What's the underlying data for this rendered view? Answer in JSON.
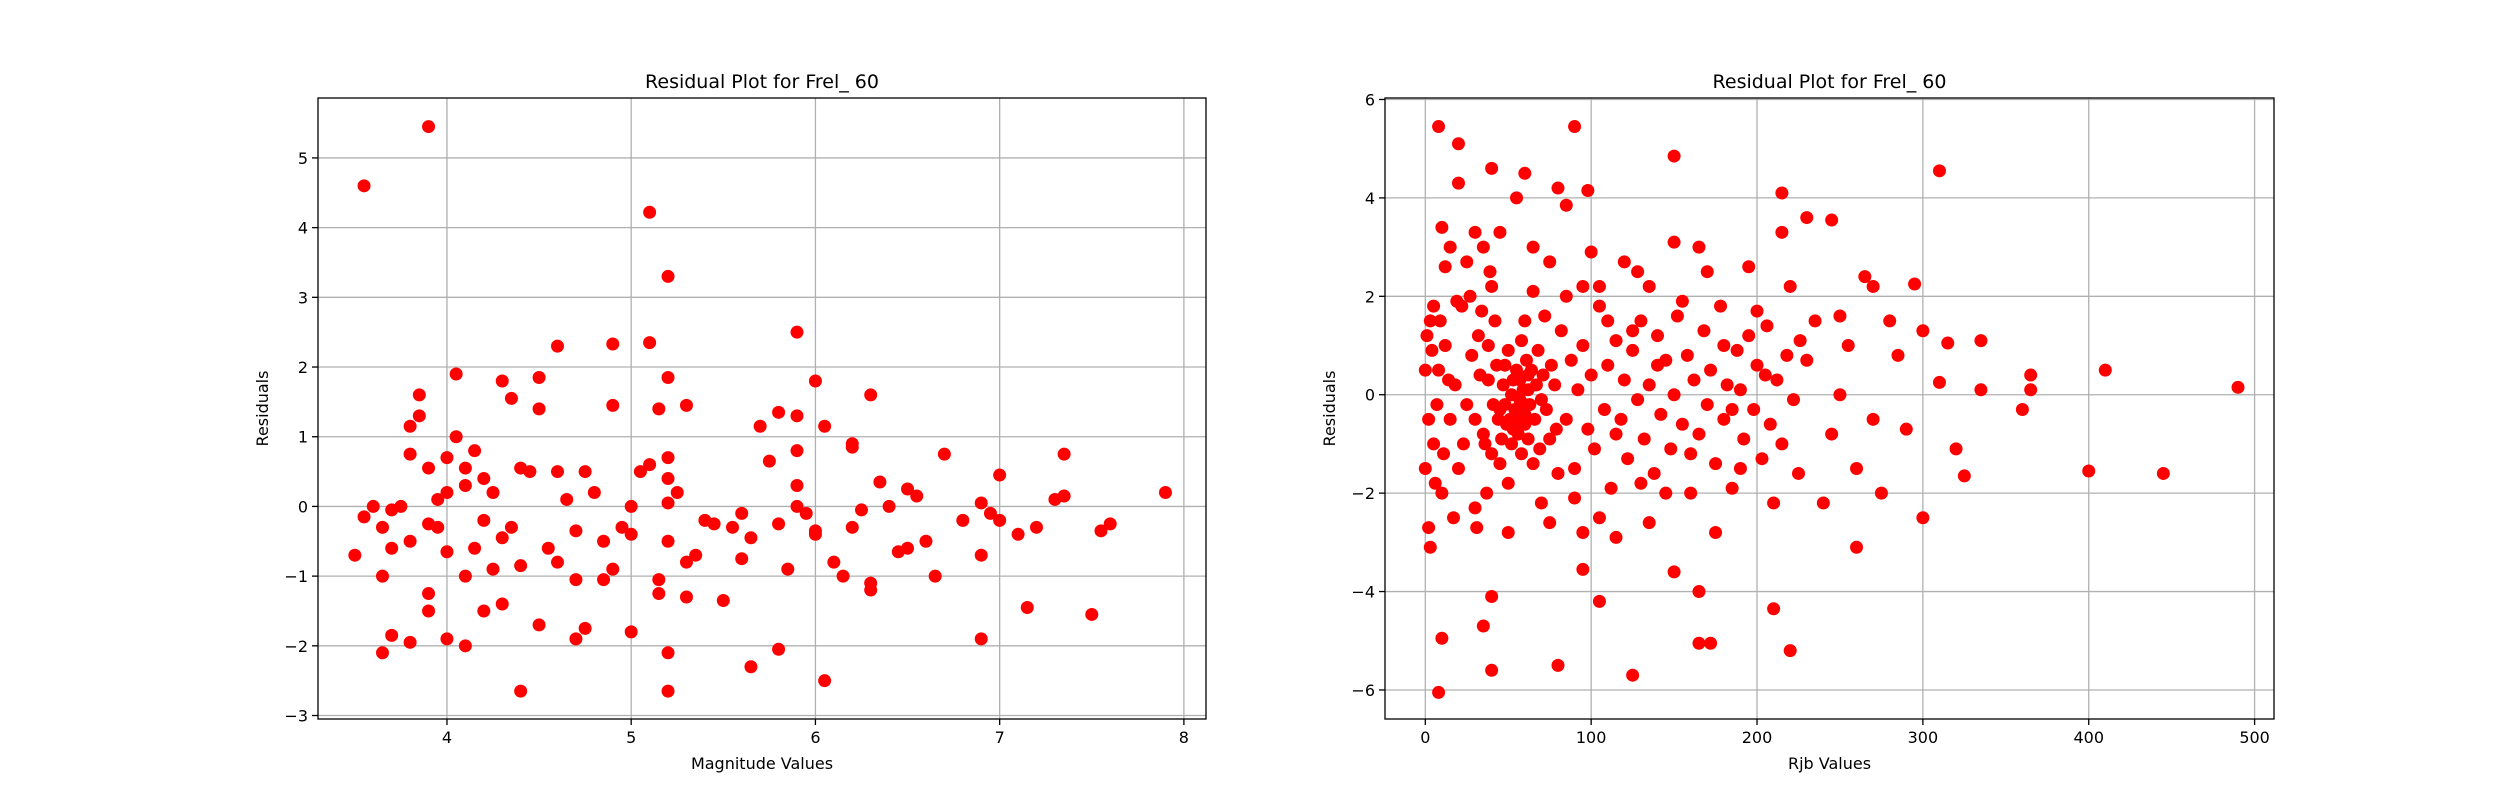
{
  "chart_data": [
    {
      "type": "scatter",
      "title": "Residual Plot for Frel_ 60",
      "xlabel": "Magnitude Values",
      "ylabel": "Residuals",
      "color": "#ff0000",
      "grid": true,
      "xlim": [
        3.3,
        8.12
      ],
      "ylim": [
        -3.05,
        5.86
      ],
      "xticks": [
        4,
        5,
        6,
        7,
        8
      ],
      "yticks": [
        {
          "value": -3,
          "label": "−3"
        },
        {
          "value": -2,
          "label": "−2"
        },
        {
          "value": -1,
          "label": "−1"
        },
        0,
        1,
        2,
        3,
        4,
        5
      ],
      "x": [
        3.55,
        3.9,
        5.1,
        5.2,
        5.9,
        4.6,
        4.9,
        5.1,
        6.0,
        6.3,
        3.5,
        3.55,
        3.65,
        3.65,
        3.7,
        3.8,
        3.9,
        3.9,
        4.0,
        4.1,
        4.4,
        4.7,
        4.75,
        5.0,
        5.2,
        5.2,
        5.65,
        5.8,
        6.05,
        6.9,
        7.15,
        7.5,
        7.9,
        7.6,
        7.55,
        7.35,
        7.3,
        7.35,
        7.2,
        7.1,
        7.0,
        7.0,
        6.9,
        6.9,
        6.95,
        6.8,
        6.7,
        6.65,
        6.6,
        6.55,
        6.5,
        6.5,
        6.45,
        6.4,
        6.35,
        6.3,
        6.3,
        6.25,
        6.2,
        6.2,
        6.2,
        6.15,
        6.1,
        6.05,
        6.0,
        5.95,
        6.0,
        5.9,
        5.9,
        5.9,
        5.85,
        5.9,
        5.8,
        5.8,
        5.75,
        5.7,
        5.65,
        5.6,
        5.6,
        5.5,
        5.4,
        5.35,
        5.3,
        5.3,
        5.3,
        5.25,
        5.2,
        5.2,
        5.2,
        5.2,
        5.2,
        5.15,
        5.15,
        5.15,
        5.1,
        5.05,
        5.0,
        5.0,
        4.95,
        4.9,
        4.9,
        4.85,
        4.85,
        4.8,
        4.75,
        4.7,
        4.65,
        4.6,
        4.55,
        4.5,
        4.5,
        4.5,
        4.45,
        4.4,
        4.4,
        4.35,
        4.3,
        4.3,
        4.25,
        4.2,
        4.2,
        4.15,
        4.15,
        4.1,
        4.1,
        4.05,
        4.05,
        4.0,
        4.0,
        3.95,
        3.95,
        3.9,
        3.85,
        3.85,
        3.8,
        3.8,
        3.8,
        3.75,
        3.7,
        3.7,
        3.65,
        3.6,
        4.2,
        4.25,
        4.3,
        4.1,
        4.0,
        4.35,
        3.9,
        4.6,
        4.7,
        5.55,
        5.45
      ],
      "values": [
        4.6,
        5.45,
        4.22,
        3.3,
        2.5,
        2.3,
        2.33,
        2.35,
        1.8,
        1.6,
        -0.7,
        -0.15,
        -2.1,
        -1.0,
        -1.85,
        -1.95,
        -1.5,
        -1.25,
        -1.9,
        -2.0,
        -2.65,
        -1.9,
        -1.75,
        -1.8,
        -2.65,
        -2.1,
        -2.3,
        -2.05,
        -2.5,
        -1.9,
        -1.45,
        -1.55,
        0.2,
        -0.25,
        -0.35,
        0.75,
        0.1,
        0.15,
        -0.3,
        -0.4,
        0.45,
        -0.2,
        -0.7,
        0.05,
        -0.1,
        -0.2,
        0.75,
        -1.0,
        -0.5,
        0.15,
        -0.6,
        0.25,
        -0.65,
        0.0,
        0.35,
        -1.2,
        -1.1,
        -0.05,
        0.9,
        -0.3,
        0.85,
        -1.0,
        -0.8,
        1.15,
        -0.35,
        -0.1,
        -0.4,
        1.3,
        0.8,
        0.3,
        -0.9,
        0.0,
        -0.25,
        1.35,
        0.65,
        1.15,
        -0.45,
        -0.75,
        -0.1,
        -1.35,
        -0.2,
        -0.7,
        1.45,
        -1.3,
        -0.8,
        0.2,
        0.7,
        -0.5,
        0.05,
        0.4,
        1.85,
        1.4,
        -1.05,
        -1.25,
        0.6,
        0.5,
        0.0,
        -0.4,
        -0.3,
        1.45,
        -0.9,
        -1.05,
        -0.5,
        0.2,
        0.5,
        -0.35,
        0.1,
        0.5,
        -0.6,
        1.85,
        1.4,
        -1.7,
        0.5,
        -0.85,
        0.55,
        1.55,
        1.8,
        -1.4,
        0.2,
        -1.5,
        0.4,
        -0.6,
        0.8,
        -1.0,
        0.3,
        1.0,
        1.9,
        -0.65,
        0.7,
        -0.3,
        0.1,
        0.55,
        1.3,
        1.6,
        1.15,
        0.75,
        -0.5,
        0.0,
        -0.05,
        -0.6,
        -0.3,
        0.0,
        -0.2,
        -0.9,
        -0.45,
        0.55,
        0.2,
        -0.3,
        -0.25,
        -0.8,
        -1.05,
        -0.3,
        -0.25
      ]
    },
    {
      "type": "scatter",
      "title": "Residual Plot for Frel_ 60",
      "xlabel": "Rjb Values",
      "ylabel": "Residuals",
      "color": "#ff0000",
      "grid": true,
      "xlim": [
        -24.3,
        511.7
      ],
      "ylim": [
        -6.59,
        6.03
      ],
      "xticks": [
        0,
        100,
        200,
        300,
        400,
        500
      ],
      "yticks": [
        {
          "value": -6,
          "label": "−6"
        },
        {
          "value": -4,
          "label": "−4"
        },
        {
          "value": -2,
          "label": "−2"
        },
        0,
        2,
        4,
        6
      ],
      "x": [
        8,
        20,
        40,
        60,
        90,
        150,
        310,
        215,
        230,
        245,
        8,
        125,
        40,
        80,
        220,
        165,
        172,
        210,
        105,
        40,
        35,
        10,
        165,
        150,
        95,
        260,
        490,
        445,
        410,
        400,
        365,
        365,
        360,
        335,
        335,
        325,
        320,
        315,
        310,
        300,
        300,
        295,
        290,
        280,
        270,
        265,
        260,
        255,
        250,
        245,
        240,
        235,
        230,
        225,
        220,
        215,
        210,
        205,
        200,
        195,
        190,
        185,
        180,
        175,
        170,
        165,
        160,
        155,
        150,
        145,
        140,
        135,
        130,
        125,
        120,
        115,
        110,
        105,
        100,
        98,
        95,
        90,
        85,
        80,
        75,
        70,
        65,
        60,
        55,
        50,
        45,
        40,
        35,
        30,
        25,
        20,
        15,
        12,
        10,
        5,
        3,
        2,
        3,
        5,
        8,
        10,
        12,
        15,
        18,
        20,
        22,
        25,
        28,
        30,
        32,
        35,
        38,
        40,
        42,
        45,
        48,
        50,
        52,
        55,
        58,
        60,
        62,
        65,
        68,
        70,
        72,
        75,
        78,
        80,
        82,
        85,
        88,
        90,
        92,
        95,
        98,
        100,
        102,
        105,
        108,
        110,
        112,
        115,
        118,
        120,
        122,
        125,
        128,
        130,
        132,
        135,
        138,
        140,
        142,
        145,
        148,
        150,
        152,
        155,
        158,
        160,
        162,
        165,
        168,
        170,
        172,
        175,
        178,
        180,
        182,
        185,
        188,
        190,
        192,
        195,
        198,
        200,
        203,
        206,
        208,
        212,
        215,
        218,
        222,
        226,
        30,
        33,
        36,
        38,
        41,
        43,
        45,
        47,
        49,
        50,
        52,
        53,
        54,
        55,
        56,
        57,
        58,
        59,
        60,
        61,
        62,
        63,
        64,
        66,
        67,
        69,
        71,
        73,
        76,
        79,
        46,
        48,
        51,
        53,
        55,
        57,
        58,
        60,
        44,
        62,
        0,
        0,
        1,
        2,
        4,
        6,
        7,
        9,
        11,
        14,
        17,
        19,
        23,
        27,
        31,
        34,
        37,
        39,
        65,
        75,
        85,
        95,
        105,
        115,
        128,
        135,
        250,
        270,
        285,
        275
      ],
      "values": [
        5.45,
        5.1,
        4.6,
        4.5,
        5.45,
        4.85,
        4.55,
        4.1,
        3.6,
        3.55,
        -6.05,
        -5.7,
        -5.6,
        -5.5,
        -5.2,
        -5.05,
        -5.05,
        -4.35,
        -4.2,
        -4.1,
        -4.7,
        -4.95,
        -4.0,
        -3.6,
        -3.55,
        -3.1,
        0.15,
        -1.6,
        0.5,
        -1.55,
        0.4,
        0.1,
        -0.3,
        1.1,
        0.1,
        -1.65,
        -1.1,
        1.05,
        0.25,
        1.3,
        -2.5,
        2.25,
        -0.7,
        1.5,
        2.2,
        2.4,
        -1.5,
        1.0,
        0.0,
        -0.8,
        -2.2,
        1.5,
        0.7,
        -1.6,
        2.2,
        3.3,
        -2.2,
        0.4,
        1.7,
        2.6,
        -1.5,
        -0.3,
        1.0,
        -2.8,
        2.5,
        3.0,
        -1.2,
        1.9,
        3.1,
        -2.0,
        0.6,
        2.2,
        -1.8,
        1.3,
        2.7,
        -0.8,
        1.5,
        -2.5,
        2.9,
        4.15,
        2.2,
        -1.5,
        3.85,
        4.2,
        2.7,
        -2.2,
        3.0,
        1.5,
        4.0,
        -2.8,
        3.3,
        2.2,
        3.0,
        3.3,
        2.7,
        4.3,
        3.0,
        2.6,
        3.4,
        1.8,
        -3.1,
        -2.7,
        1.5,
        -1.0,
        0.5,
        -2.0,
        1.0,
        -0.5,
        0.2,
        -1.5,
        1.8,
        -0.2,
        0.8,
        -2.3,
        1.2,
        -0.8,
        0.3,
        -1.2,
        1.5,
        -0.3,
        0.6,
        -1.8,
        0.0,
        -0.6,
        1.1,
        -0.4,
        0.4,
        -1.4,
        0.9,
        -0.1,
        1.6,
        -0.9,
        0.2,
        -1.6,
        1.3,
        -0.5,
        0.7,
        -2.1,
        0.1,
        1.0,
        -0.7,
        0.4,
        -1.1,
        1.8,
        -0.3,
        0.6,
        -1.9,
        1.1,
        -0.5,
        0.3,
        -1.3,
        0.9,
        -0.1,
        1.5,
        -0.9,
        0.2,
        -1.6,
        1.2,
        -0.4,
        0.7,
        -1.1,
        0.0,
        1.6,
        -0.6,
        0.8,
        -2.0,
        0.3,
        -0.8,
        1.3,
        -0.2,
        0.5,
        -1.4,
        1.8,
        -0.5,
        0.2,
        -1.9,
        0.9,
        0.1,
        -0.9,
        1.2,
        -0.3,
        0.6,
        -1.3,
        1.4,
        -0.6,
        0.3,
        -1.0,
        0.8,
        -0.1,
        1.1,
        -0.5,
        0.4,
        -1.0,
        1.0,
        -0.2,
        0.6,
        -1.4,
        0.2,
        -0.6,
        0.9,
        -1.0,
        0.3,
        -0.3,
        0.5,
        -0.8,
        -0.1,
        -1.2,
        0.1,
        -0.6,
        0.7,
        -0.9,
        -0.2,
        0.5,
        -0.5,
        0.2,
        -1.1,
        0.4,
        -0.3,
        0.6,
        -0.7,
        -0.9,
        -0.2,
        -0.5,
        -0.7,
        -0.4,
        0.3,
        -0.5,
        -0.2,
        -0.5,
        0.1,
        0.5,
        -1.5,
        1.2,
        -0.5,
        0.9,
        -1.8,
        -0.2,
        1.5,
        -1.2,
        0.3,
        -2.5,
        1.9,
        -1.0,
        2.0,
        -2.7,
        1.7,
        -2.0,
        2.5,
        2.1,
        -2.6,
        2.0,
        -2.8,
        2.2,
        -2.9,
        2.5,
        -2.6,
        1.6,
        -0.5,
        0.8,
        -2.0
      ]
    }
  ]
}
